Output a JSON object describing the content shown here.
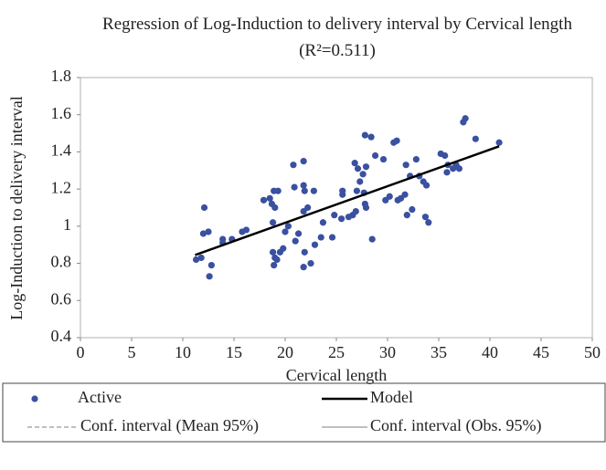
{
  "chart_data": {
    "type": "scatter",
    "title": "Regression of Log-Induction to delivery interval by Cervical length (R²=0.511)",
    "x_label": "Cervical length",
    "y_label": "Log-Induction to delivery interval",
    "xlim": [
      0,
      50
    ],
    "xticks": [
      0,
      5,
      10,
      15,
      20,
      25,
      30,
      35,
      40,
      45,
      50
    ],
    "ylim": [
      0.4,
      1.8
    ],
    "yticks": [
      0.4,
      0.6,
      0.8,
      1,
      1.2,
      1.4,
      1.6,
      1.8
    ],
    "series": [
      {
        "name": "Active",
        "color": "#3a50a0",
        "mode": "markers",
        "x": [
          11.3,
          11.8,
          12,
          12.1,
          12.5,
          12.6,
          12.8,
          13.9,
          13.9,
          14.8,
          15.8,
          16.2,
          17.9,
          18.5,
          18.7,
          18.8,
          18.9,
          19,
          18.8,
          18.9,
          19,
          19.2,
          19.3,
          19.5,
          19.8,
          20,
          20.3,
          20.8,
          20.9,
          21,
          21.3,
          21.8,
          21.8,
          21.9,
          21.8,
          21.9,
          21.8,
          22.2,
          22.5,
          22.8,
          22.9,
          23.5,
          23.7,
          24.6,
          24.8,
          25.5,
          25.6,
          25.6,
          26.2,
          26.6,
          26.8,
          26.9,
          27,
          27.1,
          27.3,
          27.6,
          27.7,
          27.9,
          27.8,
          27.8,
          27.9,
          28.4,
          28.5,
          28.8,
          29.6,
          29.8,
          30.2,
          30.6,
          30.9,
          31,
          31.3,
          31.7,
          31.8,
          31.9,
          32.2,
          32.4,
          32.8,
          33.1,
          33.5,
          33.8,
          33.7,
          34,
          35.2,
          35.6,
          35.8,
          35.9,
          36.4,
          36.7,
          37,
          37.4,
          37.6,
          38.6,
          40.9
        ],
        "values": [
          0.82,
          0.83,
          0.96,
          1.1,
          0.97,
          0.73,
          0.79,
          0.93,
          0.91,
          0.93,
          0.97,
          0.98,
          1.14,
          1.15,
          1.12,
          1.02,
          1.19,
          1.1,
          0.86,
          0.79,
          0.83,
          0.82,
          1.19,
          0.86,
          0.88,
          0.97,
          1.0,
          1.33,
          1.21,
          0.92,
          0.96,
          1.35,
          1.22,
          1.19,
          1.08,
          0.86,
          0.78,
          1.1,
          0.8,
          1.19,
          0.9,
          0.94,
          1.02,
          0.94,
          1.06,
          1.04,
          1.17,
          1.19,
          1.05,
          1.06,
          1.34,
          1.08,
          1.19,
          1.31,
          1.24,
          1.28,
          1.18,
          1.32,
          1.49,
          1.12,
          1.1,
          1.48,
          0.93,
          1.38,
          1.36,
          1.14,
          1.16,
          1.45,
          1.46,
          1.14,
          1.15,
          1.17,
          1.33,
          1.06,
          1.27,
          1.09,
          1.36,
          1.27,
          1.24,
          1.22,
          1.05,
          1.02,
          1.39,
          1.38,
          1.29,
          1.33,
          1.31,
          1.33,
          1.31,
          1.56,
          1.58,
          1.47,
          1.45
        ]
      },
      {
        "name": "Model",
        "color": "#000000",
        "mode": "line",
        "linestyle": "solid",
        "x": [
          11.2,
          40.9
        ],
        "values": [
          0.845,
          1.43
        ]
      },
      {
        "name": "Conf. interval (Mean 95%)",
        "color": "#aaaaaa",
        "mode": "line",
        "linestyle": "dashed",
        "x": [],
        "values": []
      },
      {
        "name": "Conf. interval (Obs. 95%)",
        "color": "#aaaaaa",
        "mode": "line",
        "linestyle": "solid",
        "x": [],
        "values": []
      }
    ]
  }
}
